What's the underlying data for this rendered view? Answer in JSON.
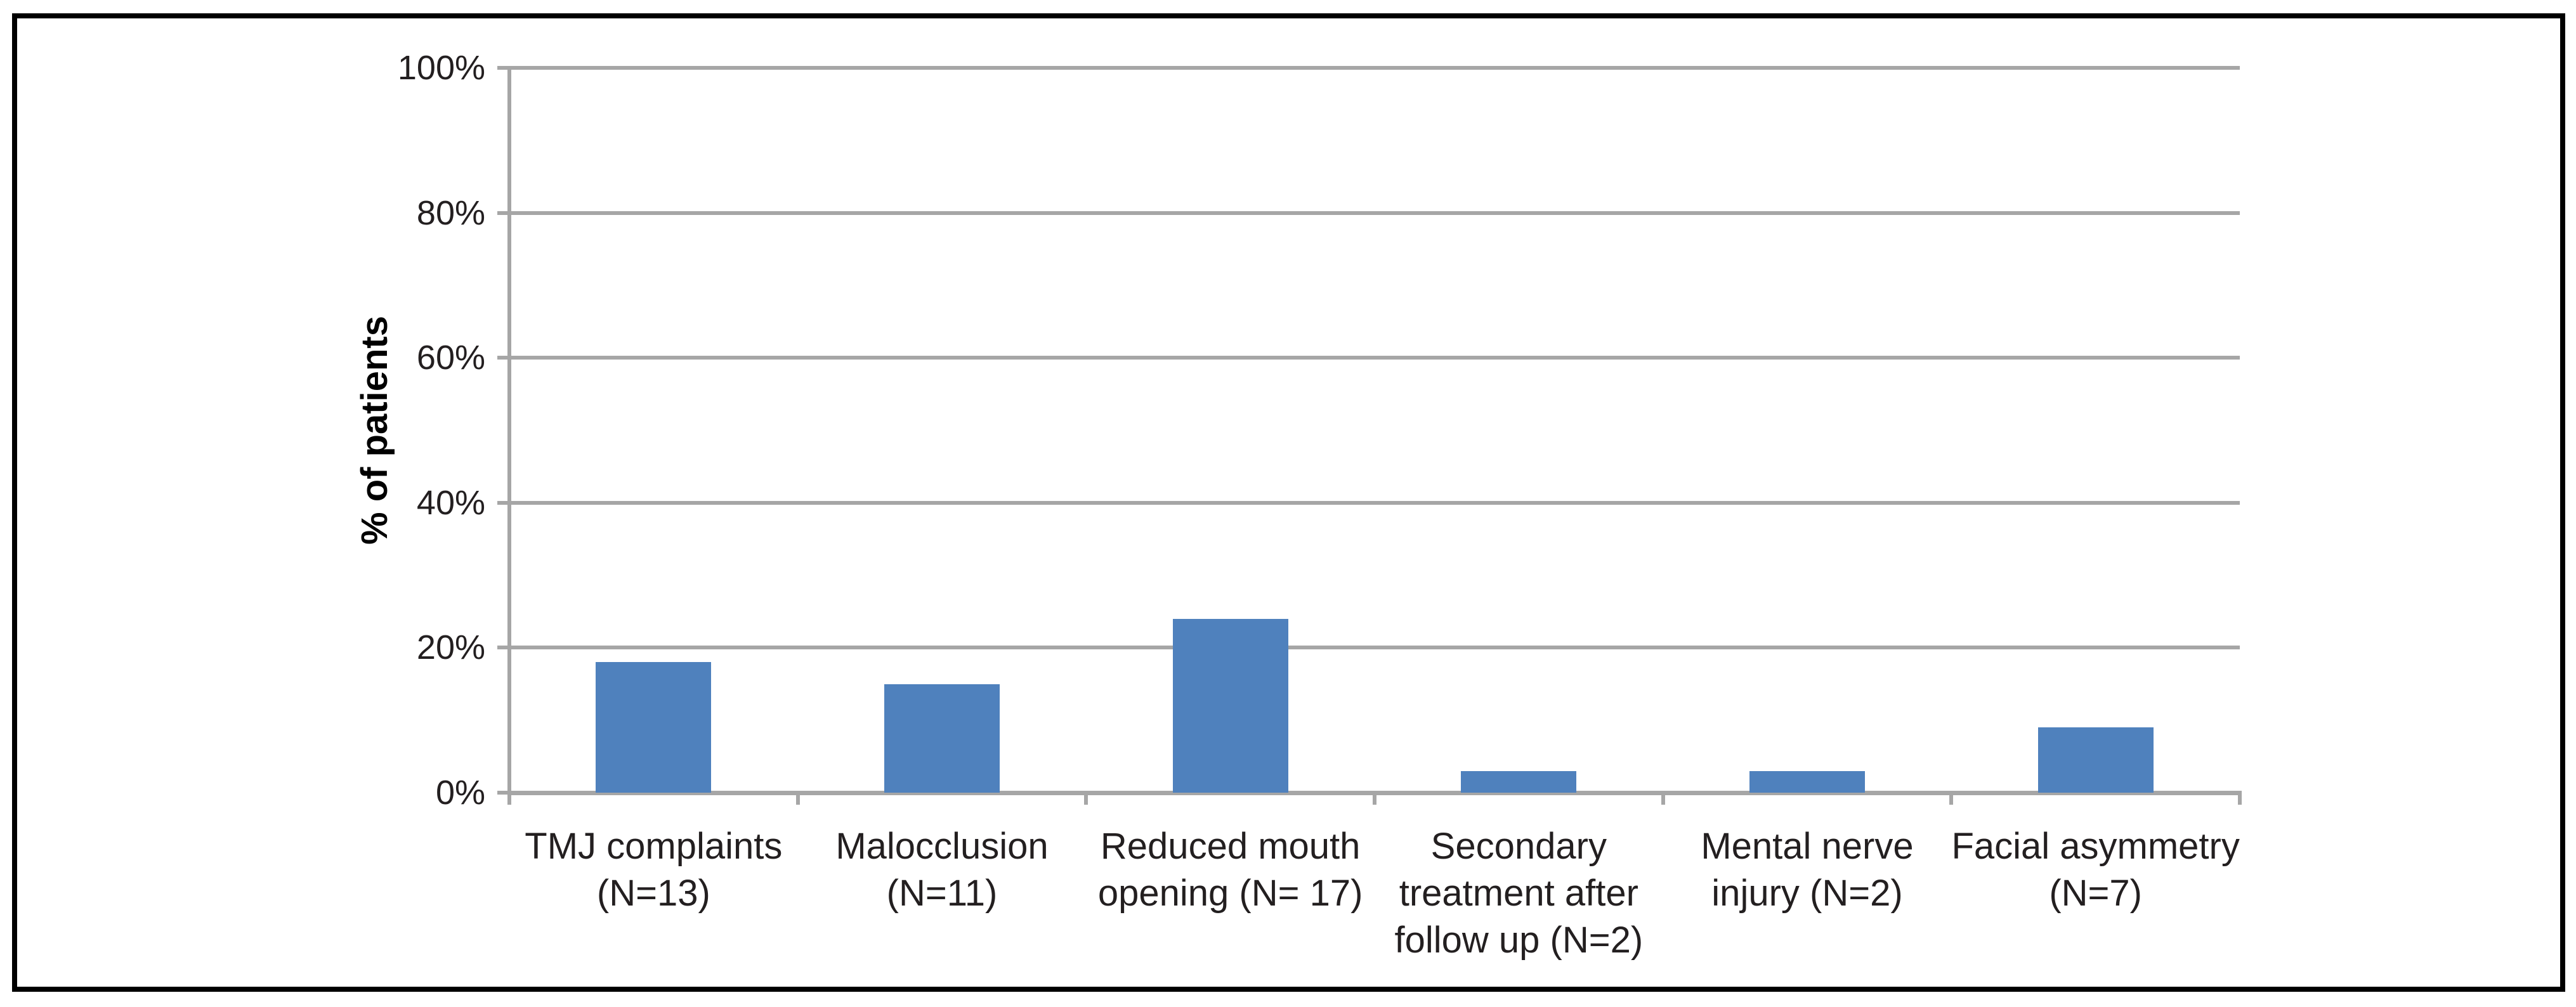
{
  "chart_data": {
    "type": "bar",
    "title": "",
    "xlabel": "",
    "ylabel": "% of patients",
    "categories": [
      "TMJ complaints\n(N=13)",
      "Malocclusion\n(N=11)",
      "Reduced mouth\nopening (N= 17)",
      "Secondary\ntreatment after\nfollow up (N=2)",
      "Mental nerve\ninjury (N=2)",
      "Facial asymmetry\n(N=7)"
    ],
    "values": [
      18,
      15,
      24,
      3,
      3,
      9
    ],
    "value_unit": "%",
    "ylim": [
      0,
      100
    ],
    "ytick_step": 20,
    "ytick_labels": [
      "0%",
      "20%",
      "40%",
      "60%",
      "80%",
      "100%"
    ],
    "grid": "horizontal major gridlines on",
    "legend": "none",
    "colors": {
      "bar": "#4F81BD",
      "gridline": "#A6A6A6",
      "axis": "#A6A6A6",
      "text": "#231F20",
      "frame_border": "#000000",
      "background": "#FFFFFF"
    }
  }
}
